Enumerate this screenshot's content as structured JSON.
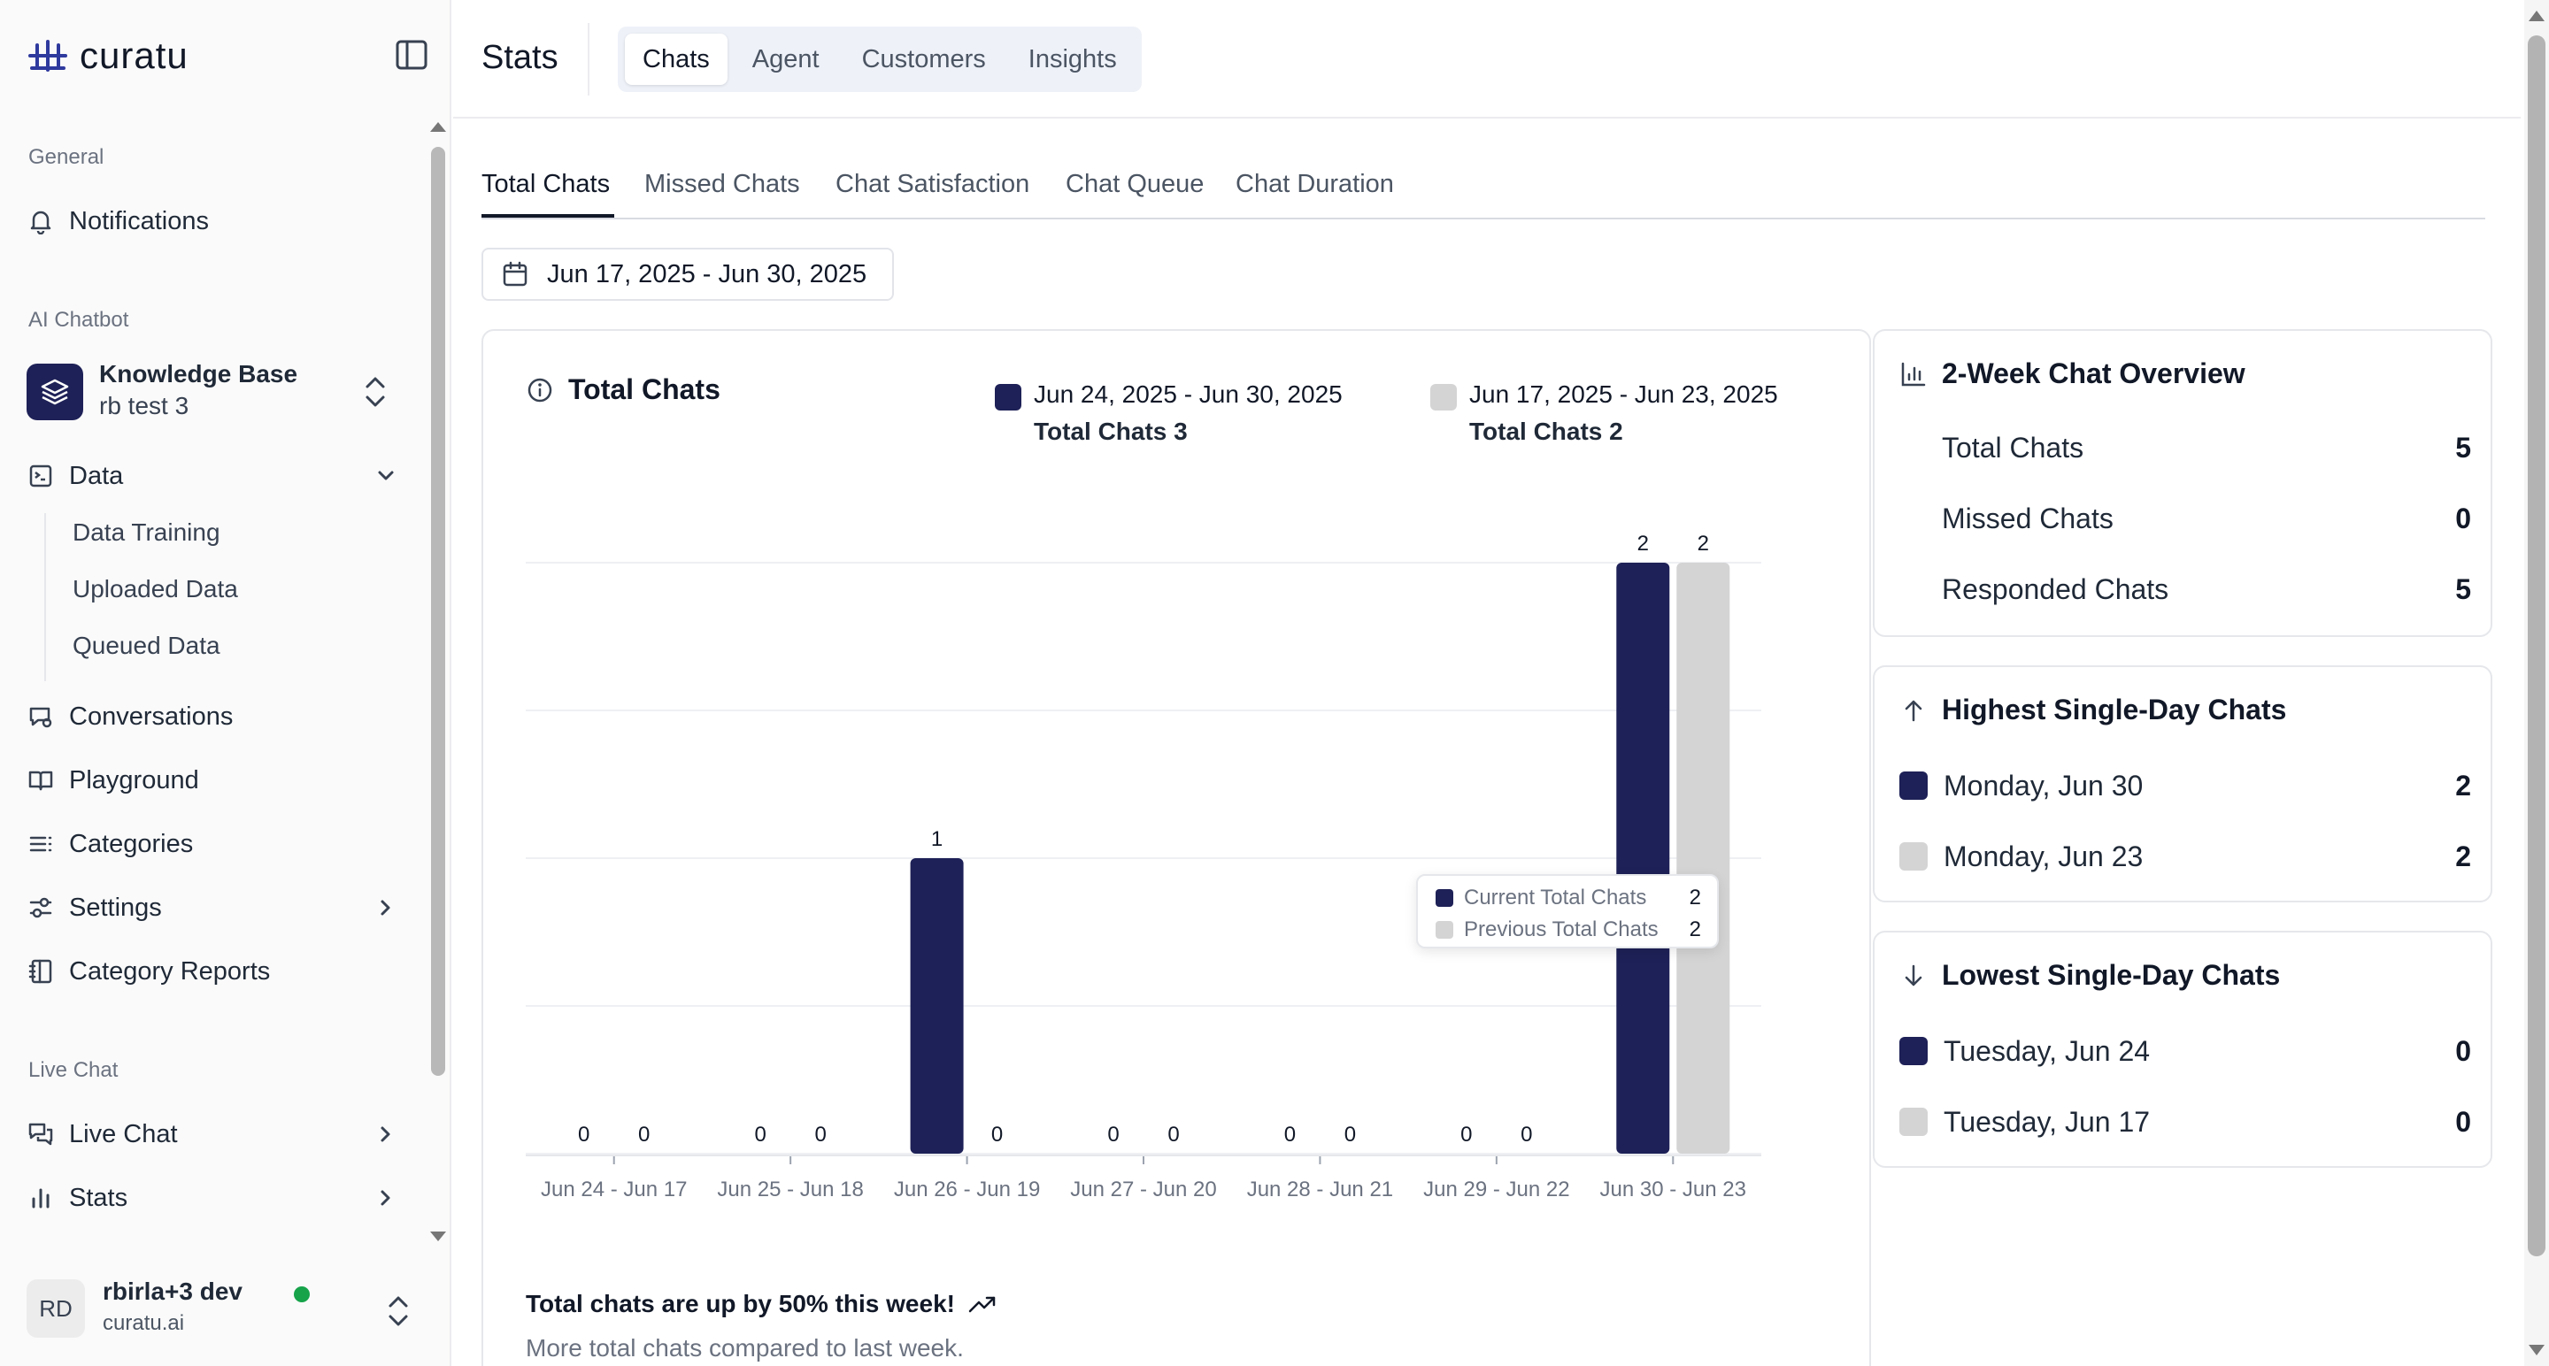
{
  "app": {
    "name": "curatu"
  },
  "sidebar": {
    "groups": {
      "general": "General",
      "ai_chatbot": "AI Chatbot",
      "live_chat": "Live Chat"
    },
    "notifications": "Notifications",
    "knowledge_base": {
      "title": "Knowledge Base",
      "subtitle": "rb test 3"
    },
    "data": {
      "label": "Data",
      "children": [
        "Data Training",
        "Uploaded Data",
        "Queued Data"
      ]
    },
    "conversations": "Conversations",
    "playground": "Playground",
    "categories": "Categories",
    "settings": "Settings",
    "category_reports": "Category Reports",
    "live_chat": "Live Chat",
    "stats": "Stats",
    "user": {
      "initials": "RD",
      "name": "rbirla+3 dev",
      "org": "curatu.ai",
      "status_color": "#16a34a"
    }
  },
  "header": {
    "title": "Stats",
    "tabs": [
      "Chats",
      "Agent",
      "Customers",
      "Insights"
    ],
    "active_tab": "Chats"
  },
  "subtabs": {
    "items": [
      "Total Chats",
      "Missed Chats",
      "Chat Satisfaction",
      "Chat Queue",
      "Chat Duration"
    ],
    "active": "Total Chats"
  },
  "date_range": "Jun 17, 2025 - Jun 30, 2025",
  "chart_card": {
    "title": "Total Chats",
    "legend": [
      {
        "range": "Jun 24, 2025 - Jun 30, 2025",
        "summary": "Total Chats 3",
        "color": "#1e2157"
      },
      {
        "range": "Jun 17, 2025 - Jun 23, 2025",
        "summary": "Total Chats 2",
        "color": "#d4d4d4"
      }
    ],
    "tooltip": {
      "rows": [
        {
          "label": "Current Total Chats",
          "value": "2",
          "color": "#1e2157"
        },
        {
          "label": "Previous Total Chats",
          "value": "2",
          "color": "#d4d4d4"
        }
      ]
    },
    "footer_note": "Total chats are up by 50% this week!",
    "footer_sub": "More total chats compared to last week."
  },
  "chart_data": {
    "type": "bar",
    "title": "Total Chats",
    "categories": [
      "Jun 24 - Jun 17",
      "Jun 25 - Jun 18",
      "Jun 26 - Jun 19",
      "Jun 27 - Jun 20",
      "Jun 28 - Jun 21",
      "Jun 29 - Jun 22",
      "Jun 30 - Jun 23"
    ],
    "series": [
      {
        "name": "Current Total Chats",
        "values": [
          0,
          0,
          1,
          0,
          0,
          0,
          2
        ],
        "color": "#1e2157"
      },
      {
        "name": "Previous Total Chats",
        "values": [
          0,
          0,
          0,
          0,
          0,
          0,
          2
        ],
        "color": "#d4d4d4"
      }
    ],
    "ylim": [
      0,
      2
    ],
    "grid": true
  },
  "overview": {
    "title": "2-Week Chat Overview",
    "rows": [
      {
        "label": "Total Chats",
        "value": "5"
      },
      {
        "label": "Missed Chats",
        "value": "0"
      },
      {
        "label": "Responded Chats",
        "value": "5"
      }
    ]
  },
  "highest": {
    "title": "Highest Single-Day Chats",
    "rows": [
      {
        "label": "Monday, Jun 30",
        "value": "2",
        "color": "#1e2157"
      },
      {
        "label": "Monday, Jun 23",
        "value": "2",
        "color": "#d4d4d4"
      }
    ]
  },
  "lowest": {
    "title": "Lowest Single-Day Chats",
    "rows": [
      {
        "label": "Tuesday, Jun 24",
        "value": "0",
        "color": "#1e2157"
      },
      {
        "label": "Tuesday, Jun 17",
        "value": "0",
        "color": "#d4d4d4"
      }
    ]
  }
}
